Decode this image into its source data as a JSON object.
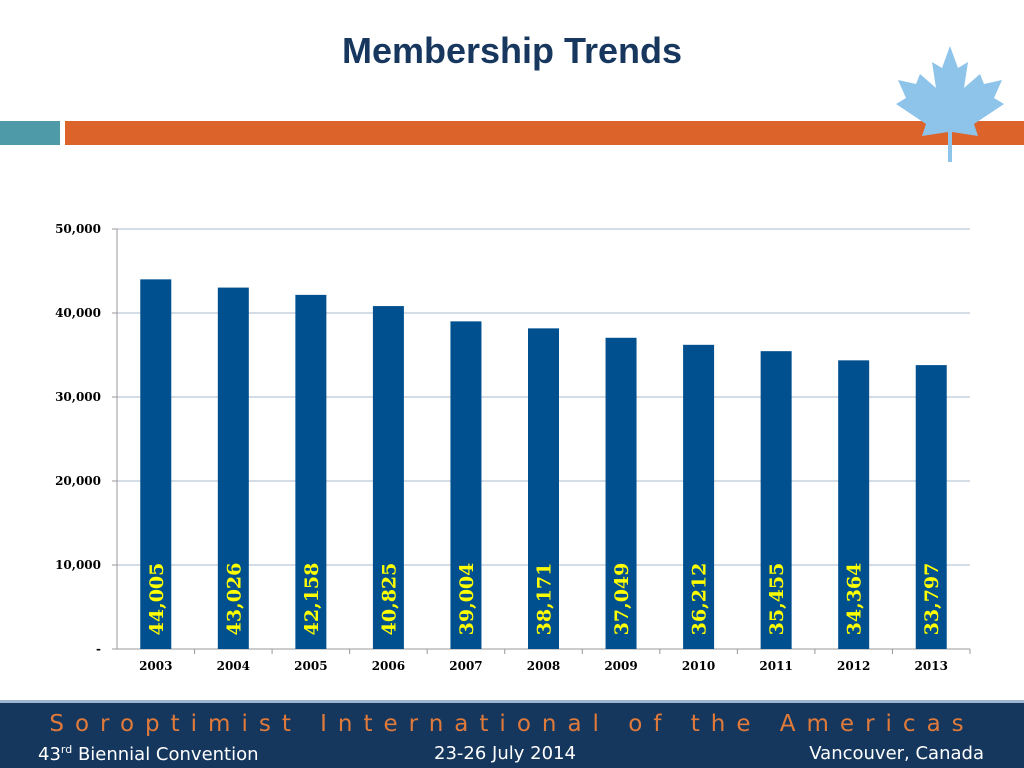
{
  "slide": {
    "title": "Membership Trends"
  },
  "footer": {
    "organization": "Soroptimist International of the Americas",
    "convention_number": "43",
    "convention_suffix": "rd",
    "convention_text": " Biennial Convention",
    "dates": "23-26 July 2014",
    "location": "Vancouver, Canada"
  },
  "colors": {
    "title": "#17375e",
    "bar": "#00508f",
    "data_label": "#ffff00",
    "accent_orange": "#dc6329",
    "accent_teal": "#4f9aa8",
    "footer_bg": "#15375d",
    "footer_org_text": "#e07a3a",
    "maple_leaf": "#8ec3ea"
  },
  "icons": {
    "decoration": "maple-leaf-icon"
  },
  "chart_data": {
    "type": "bar",
    "categories": [
      "2003",
      "2004",
      "2005",
      "2006",
      "2007",
      "2008",
      "2009",
      "2010",
      "2011",
      "2012",
      "2013"
    ],
    "values": [
      44005,
      43026,
      42158,
      40825,
      39004,
      38171,
      37049,
      36212,
      35455,
      34364,
      33797
    ],
    "data_labels": [
      "44,005",
      "43,026",
      "42,158",
      "40,825",
      "39,004",
      "38,171",
      "37,049",
      "36,212",
      "35,455",
      "34,364",
      "33,797"
    ],
    "y_ticks": [
      0,
      10000,
      20000,
      30000,
      40000,
      50000
    ],
    "y_tick_labels": [
      "-",
      "10,000",
      "20,000",
      "30,000",
      "40,000",
      "50,000"
    ],
    "ylim": [
      0,
      50000
    ],
    "grid": true,
    "legend": "none"
  }
}
